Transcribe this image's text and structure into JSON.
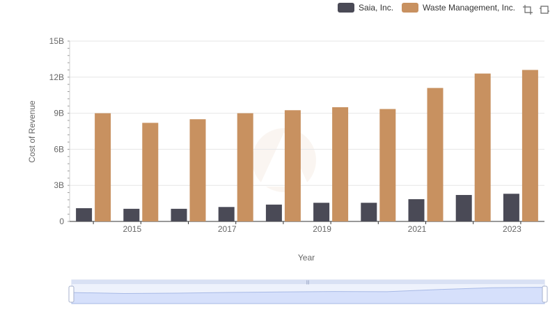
{
  "legend": {
    "items": [
      {
        "name": "Saia, Inc.",
        "color": "#4a4a56"
      },
      {
        "name": "Waste Management, Inc.",
        "color": "#c89160"
      }
    ]
  },
  "toolbar": {
    "icons": [
      "crop-zoom-icon",
      "restore-zoom-icon"
    ]
  },
  "chart_data": {
    "type": "bar",
    "xlabel": "Year",
    "ylabel": "Cost of Revenue",
    "ylim": [
      0,
      15000000000
    ],
    "yticks": [
      {
        "value": 0,
        "label": "0"
      },
      {
        "value": 3000000000,
        "label": "3B"
      },
      {
        "value": 6000000000,
        "label": "6B"
      },
      {
        "value": 9000000000,
        "label": "9B"
      },
      {
        "value": 12000000000,
        "label": "12B"
      },
      {
        "value": 15000000000,
        "label": "15B"
      }
    ],
    "categories": [
      "2014",
      "2015",
      "2016",
      "2017",
      "2018",
      "2019",
      "2020",
      "2021",
      "2022",
      "2023"
    ],
    "xtick_labels": [
      "2015",
      "2017",
      "2019",
      "2021",
      "2023"
    ],
    "grid": true,
    "legend_position": "top-right",
    "series": [
      {
        "name": "Saia, Inc.",
        "color": "#4a4a56",
        "values": [
          1100000000,
          1050000000,
          1050000000,
          1200000000,
          1400000000,
          1550000000,
          1550000000,
          1850000000,
          2200000000,
          2300000000
        ]
      },
      {
        "name": "Waste Management, Inc.",
        "color": "#c89160",
        "values": [
          9000000000,
          8200000000,
          8500000000,
          9000000000,
          9250000000,
          9500000000,
          9350000000,
          11100000000,
          12300000000,
          12600000000
        ]
      }
    ]
  }
}
